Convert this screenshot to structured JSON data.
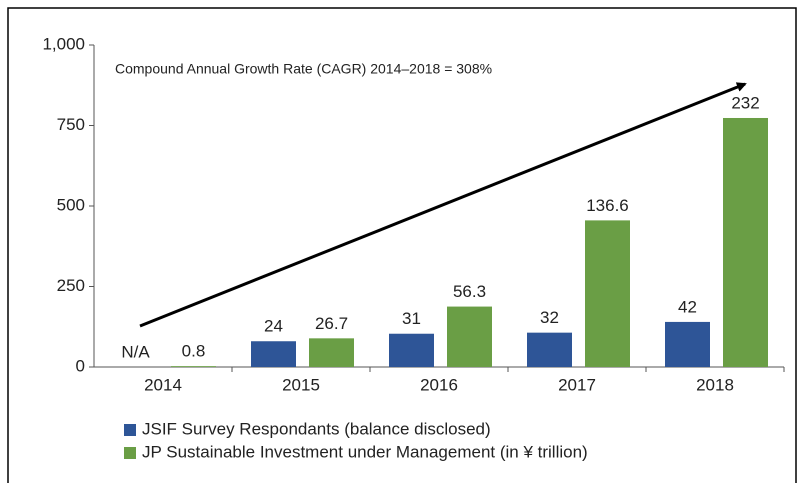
{
  "chart_data": {
    "type": "bar",
    "annotation": "Compound Annual Growth Rate (CAGR) 2014–2018 = 308%",
    "categories": [
      "2014",
      "2015",
      "2016",
      "2017",
      "2018"
    ],
    "series": [
      {
        "name": "JSIF Survey Respondants (balance disclosed)",
        "color": "#2e5597",
        "axis": "y2",
        "values": [
          null,
          24,
          31,
          32,
          42
        ],
        "value_labels": [
          "N/A",
          "24",
          "31",
          "32",
          "42"
        ]
      },
      {
        "name": "JP Sustainable Investment under Management (in ¥ trillion)",
        "color": "#6a9e45",
        "axis": "y2",
        "values": [
          0.8,
          26.7,
          56.3,
          136.6,
          232
        ]
      }
    ],
    "ylim": [
      0,
      1000
    ],
    "yticks": [
      0,
      250,
      500,
      750,
      {
        "value": 1000,
        "label": "1,000"
      }
    ],
    "y2lim": [
      0,
      300
    ],
    "legend": "bottom"
  }
}
